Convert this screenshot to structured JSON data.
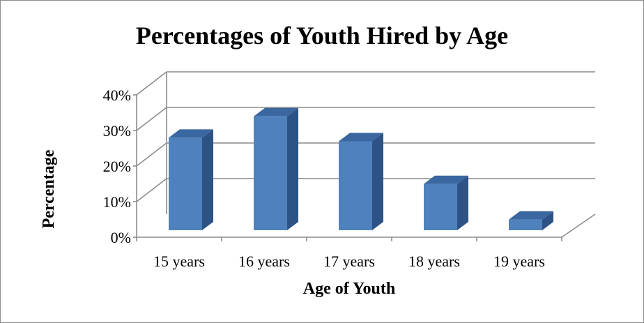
{
  "chart_data": {
    "type": "bar",
    "title": "Percentages of Youth Hired by Age",
    "xlabel": "Age of Youth",
    "ylabel": "Percentage",
    "categories": [
      "15 years",
      "16 years",
      "17 years",
      "18 years",
      "19 years"
    ],
    "values": [
      26,
      32,
      25,
      13,
      3
    ],
    "ylim": [
      0,
      40
    ],
    "yticks": [
      "0%",
      "10%",
      "20%",
      "30%",
      "40%"
    ],
    "grid": true,
    "legend": "none",
    "style": "3d-column"
  },
  "colors": {
    "bar_front": "#4f81bd",
    "bar_side": "#2d5286",
    "bar_top": "#3a679f",
    "grid": "#8c8c8c",
    "frame": "#8c8c8c"
  }
}
